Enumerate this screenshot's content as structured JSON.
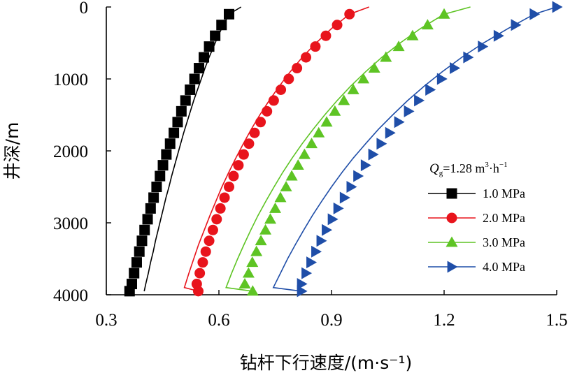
{
  "chart_data": {
    "type": "line",
    "title": "",
    "xlabel": "钻杆下行速度/(m·s⁻¹)",
    "ylabel": "井深/m",
    "xlim": [
      0.3,
      1.5
    ],
    "ylim": [
      0,
      4000
    ],
    "y_inverted": true,
    "x_ticks": [
      "0.3",
      "0.6",
      "0.9",
      "1.2",
      "1.5"
    ],
    "y_ticks": [
      "0",
      "1000",
      "2000",
      "3000",
      "4000"
    ],
    "grid": false,
    "legend": {
      "position": "center-right",
      "title": {
        "q": "Q",
        "sub": "g",
        "value": "=1.28 m",
        "exp3": "3",
        "mid": "·h",
        "expm1": "−1"
      }
    },
    "series": [
      {
        "name": "1.0 MPa",
        "color": "#000000",
        "marker": "square",
        "points": [
          [
            0.659,
            0
          ],
          [
            0.627,
            100
          ],
          [
            0.612,
            250
          ],
          [
            0.598,
            400
          ],
          [
            0.586,
            550
          ],
          [
            0.574,
            700
          ],
          [
            0.563,
            850
          ],
          [
            0.553,
            1000
          ],
          [
            0.543,
            1150
          ],
          [
            0.533,
            1300
          ],
          [
            0.524,
            1450
          ],
          [
            0.515,
            1600
          ],
          [
            0.506,
            1750
          ],
          [
            0.498,
            1900
          ],
          [
            0.49,
            2050
          ],
          [
            0.482,
            2200
          ],
          [
            0.474,
            2350
          ],
          [
            0.467,
            2500
          ],
          [
            0.459,
            2650
          ],
          [
            0.452,
            2800
          ],
          [
            0.445,
            2950
          ],
          [
            0.438,
            3100
          ],
          [
            0.431,
            3250
          ],
          [
            0.425,
            3400
          ],
          [
            0.418,
            3550
          ],
          [
            0.412,
            3700
          ],
          [
            0.405,
            3850
          ],
          [
            0.401,
            3950
          ]
        ],
        "marker_points": [
          [
            0.627,
            100
          ],
          [
            0.607,
            250
          ],
          [
            0.59,
            400
          ],
          [
            0.574,
            550
          ],
          [
            0.56,
            700
          ],
          [
            0.547,
            850
          ],
          [
            0.535,
            1000
          ],
          [
            0.523,
            1150
          ],
          [
            0.511,
            1300
          ],
          [
            0.5,
            1450
          ],
          [
            0.49,
            1600
          ],
          [
            0.48,
            1750
          ],
          [
            0.47,
            1900
          ],
          [
            0.46,
            2050
          ],
          [
            0.451,
            2200
          ],
          [
            0.443,
            2350
          ],
          [
            0.434,
            2500
          ],
          [
            0.426,
            2650
          ],
          [
            0.418,
            2800
          ],
          [
            0.41,
            2950
          ],
          [
            0.402,
            3100
          ],
          [
            0.395,
            3250
          ],
          [
            0.388,
            3400
          ],
          [
            0.381,
            3550
          ],
          [
            0.374,
            3700
          ],
          [
            0.368,
            3850
          ],
          [
            0.362,
            3950
          ]
        ]
      },
      {
        "name": "2.0 MPa",
        "color": "#e8141c",
        "marker": "circle",
        "points": [
          [
            1.0,
            0
          ],
          [
            0.948,
            100
          ],
          [
            0.9,
            300
          ],
          [
            0.859,
            500
          ],
          [
            0.822,
            700
          ],
          [
            0.79,
            900
          ],
          [
            0.761,
            1100
          ],
          [
            0.734,
            1300
          ],
          [
            0.709,
            1500
          ],
          [
            0.686,
            1700
          ],
          [
            0.665,
            1900
          ],
          [
            0.645,
            2100
          ],
          [
            0.626,
            2300
          ],
          [
            0.608,
            2500
          ],
          [
            0.592,
            2700
          ],
          [
            0.576,
            2900
          ],
          [
            0.561,
            3100
          ],
          [
            0.546,
            3300
          ],
          [
            0.533,
            3500
          ],
          [
            0.52,
            3700
          ],
          [
            0.508,
            3900
          ],
          [
            0.545,
            3950
          ]
        ],
        "marker_points": [
          [
            0.948,
            100
          ],
          [
            0.915,
            250
          ],
          [
            0.885,
            400
          ],
          [
            0.857,
            550
          ],
          [
            0.832,
            700
          ],
          [
            0.808,
            850
          ],
          [
            0.786,
            1000
          ],
          [
            0.765,
            1150
          ],
          [
            0.746,
            1300
          ],
          [
            0.728,
            1450
          ],
          [
            0.711,
            1600
          ],
          [
            0.695,
            1750
          ],
          [
            0.68,
            1900
          ],
          [
            0.666,
            2050
          ],
          [
            0.652,
            2200
          ],
          [
            0.639,
            2350
          ],
          [
            0.627,
            2500
          ],
          [
            0.615,
            2650
          ],
          [
            0.604,
            2800
          ],
          [
            0.594,
            2950
          ],
          [
            0.584,
            3100
          ],
          [
            0.574,
            3250
          ],
          [
            0.565,
            3400
          ],
          [
            0.557,
            3550
          ],
          [
            0.549,
            3700
          ],
          [
            0.541,
            3850
          ],
          [
            0.545,
            3950
          ]
        ]
      },
      {
        "name": "3.0 MPa",
        "color": "#5ec424",
        "marker": "triangle",
        "points": [
          [
            1.27,
            0
          ],
          [
            1.2,
            100
          ],
          [
            1.137,
            300
          ],
          [
            1.083,
            500
          ],
          [
            1.034,
            700
          ],
          [
            0.991,
            900
          ],
          [
            0.951,
            1100
          ],
          [
            0.915,
            1300
          ],
          [
            0.882,
            1500
          ],
          [
            0.851,
            1700
          ],
          [
            0.822,
            1900
          ],
          [
            0.795,
            2100
          ],
          [
            0.77,
            2300
          ],
          [
            0.747,
            2500
          ],
          [
            0.725,
            2700
          ],
          [
            0.704,
            2900
          ],
          [
            0.685,
            3100
          ],
          [
            0.667,
            3300
          ],
          [
            0.65,
            3500
          ],
          [
            0.634,
            3700
          ],
          [
            0.619,
            3900
          ],
          [
            0.69,
            3950
          ]
        ],
        "marker_points": [
          [
            1.2,
            100
          ],
          [
            1.156,
            250
          ],
          [
            1.116,
            400
          ],
          [
            1.079,
            550
          ],
          [
            1.045,
            700
          ],
          [
            1.014,
            850
          ],
          [
            0.985,
            1000
          ],
          [
            0.958,
            1150
          ],
          [
            0.933,
            1300
          ],
          [
            0.909,
            1450
          ],
          [
            0.887,
            1600
          ],
          [
            0.866,
            1750
          ],
          [
            0.847,
            1900
          ],
          [
            0.828,
            2050
          ],
          [
            0.811,
            2200
          ],
          [
            0.794,
            2350
          ],
          [
            0.779,
            2500
          ],
          [
            0.764,
            2650
          ],
          [
            0.75,
            2800
          ],
          [
            0.737,
            2950
          ],
          [
            0.724,
            3100
          ],
          [
            0.712,
            3250
          ],
          [
            0.7,
            3400
          ],
          [
            0.689,
            3550
          ],
          [
            0.679,
            3700
          ],
          [
            0.669,
            3850
          ],
          [
            0.69,
            3950
          ]
        ]
      },
      {
        "name": "4.0 MPa",
        "color": "#1f4ea8",
        "marker": "triangle-right",
        "points": [
          [
            1.5,
            0
          ],
          [
            1.44,
            100
          ],
          [
            1.37,
            300
          ],
          [
            1.305,
            500
          ],
          [
            1.247,
            700
          ],
          [
            1.195,
            900
          ],
          [
            1.147,
            1100
          ],
          [
            1.103,
            1300
          ],
          [
            1.063,
            1500
          ],
          [
            1.025,
            1700
          ],
          [
            0.991,
            1900
          ],
          [
            0.958,
            2100
          ],
          [
            0.928,
            2300
          ],
          [
            0.9,
            2500
          ],
          [
            0.874,
            2700
          ],
          [
            0.849,
            2900
          ],
          [
            0.826,
            3100
          ],
          [
            0.804,
            3300
          ],
          [
            0.783,
            3500
          ],
          [
            0.764,
            3700
          ],
          [
            0.745,
            3900
          ],
          [
            0.82,
            3950
          ]
        ],
        "marker_points": [
          [
            1.5,
            0
          ],
          [
            1.44,
            100
          ],
          [
            1.39,
            250
          ],
          [
            1.344,
            400
          ],
          [
            1.302,
            550
          ],
          [
            1.263,
            700
          ],
          [
            1.227,
            850
          ],
          [
            1.193,
            1000
          ],
          [
            1.162,
            1150
          ],
          [
            1.132,
            1300
          ],
          [
            1.105,
            1450
          ],
          [
            1.079,
            1600
          ],
          [
            1.055,
            1750
          ],
          [
            1.032,
            1900
          ],
          [
            1.01,
            2050
          ],
          [
            0.99,
            2200
          ],
          [
            0.97,
            2350
          ],
          [
            0.952,
            2500
          ],
          [
            0.934,
            2650
          ],
          [
            0.917,
            2800
          ],
          [
            0.902,
            2950
          ],
          [
            0.886,
            3100
          ],
          [
            0.872,
            3250
          ],
          [
            0.858,
            3400
          ],
          [
            0.845,
            3550
          ],
          [
            0.832,
            3700
          ],
          [
            0.82,
            3850
          ],
          [
            0.82,
            3950
          ]
        ]
      }
    ]
  }
}
